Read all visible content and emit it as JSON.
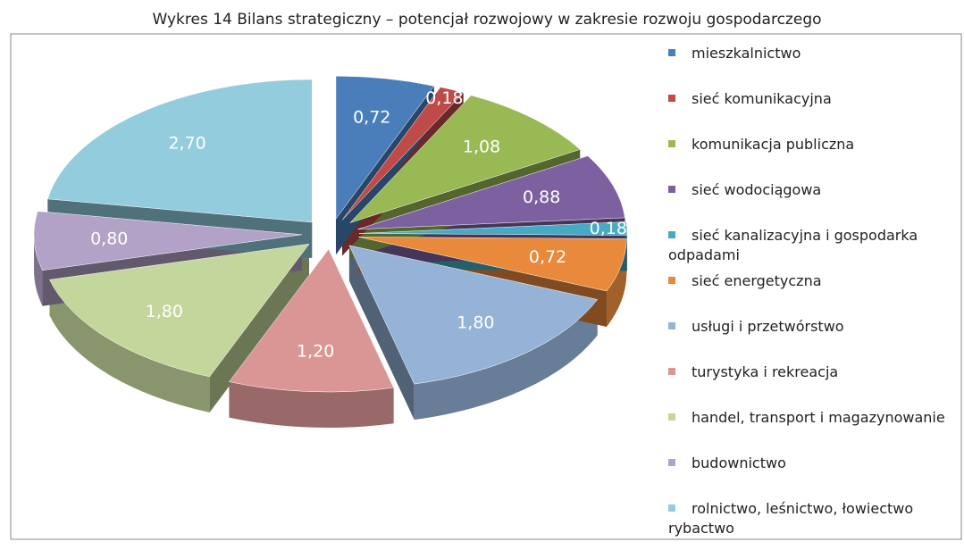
{
  "chart_data": {
    "type": "pie3d",
    "title": "Wykres 14 Bilans strategiczny – potencjał rozwojowy w zakresie rozwoju gospodarczego",
    "categories": [
      "mieszkalnictwo",
      "sieć komunikacyjna",
      "komunikacja publiczna",
      "sieć wodociągowa",
      "sieć kanalizacyjna i gospodarka odpadami",
      "sieć energetyczna",
      "usługi i przetwórstwo",
      "turystyka i rekreacja",
      "handel, transport i magazynowanie",
      "budownictwo",
      "rolnictwo, leśnictwo, łowiectwo rybactwo"
    ],
    "values": [
      0.72,
      0.18,
      1.08,
      0.88,
      0.18,
      0.72,
      1.8,
      1.2,
      1.8,
      0.8,
      2.7
    ],
    "value_labels": [
      "0,72",
      "0,18",
      "1,08",
      "0,88",
      "0,18",
      "0,72",
      "1,80",
      "1,20",
      "1,80",
      "0,80",
      "2,70"
    ],
    "colors": [
      "#4a7ebb",
      "#be4b48",
      "#98b954",
      "#7d60a0",
      "#46aac5",
      "#e8893c",
      "#95b3d7",
      "#d99694",
      "#c3d69b",
      "#b3a2c7",
      "#93cddd"
    ],
    "legend": "right"
  }
}
